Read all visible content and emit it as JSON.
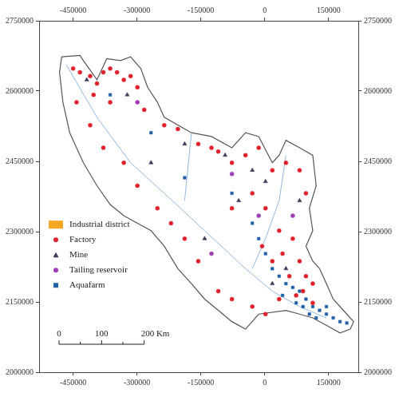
{
  "chart_data": {
    "type": "scatter",
    "xlim": [
      -530000,
      220000
    ],
    "xticks": [
      -450000,
      -300000,
      -150000,
      0,
      150000
    ],
    "ylim": [
      2000000,
      2750000
    ],
    "yticks": [
      2000000,
      2150000,
      2300000,
      2450000,
      2600000,
      2750000
    ],
    "grid": false,
    "legend": "left",
    "boundary": {
      "color": "#555555",
      "x": [
        -477000,
        -434000,
        -426000,
        -394000,
        -371000,
        -339000,
        -315000,
        -291000,
        -275000,
        -252000,
        -236000,
        -172000,
        -125000,
        -77000,
        -45000,
        -14000,
        18000,
        34000,
        50000,
        82000,
        113000,
        121000,
        105000,
        113000,
        97000,
        113000,
        129000,
        145000,
        161000,
        193000,
        209000,
        201000,
        177000,
        145000,
        113000,
        82000,
        50000,
        -14000,
        -45000,
        -77000,
        -109000,
        -141000,
        -172000,
        -204000,
        -236000,
        -267000,
        -299000,
        -331000,
        -363000,
        -394000,
        -426000,
        -458000,
        -474000,
        -482000,
        -477000
      ],
      "y": [
        2673000,
        2676000,
        2665000,
        2624000,
        2669000,
        2665000,
        2673000,
        2648000,
        2608000,
        2576000,
        2544000,
        2511000,
        2503000,
        2479000,
        2511000,
        2503000,
        2447000,
        2463000,
        2495000,
        2479000,
        2463000,
        2398000,
        2350000,
        2302000,
        2269000,
        2237000,
        2221000,
        2189000,
        2156000,
        2124000,
        2108000,
        2092000,
        2084000,
        2100000,
        2116000,
        2124000,
        2132000,
        2124000,
        2092000,
        2108000,
        2132000,
        2156000,
        2189000,
        2221000,
        2269000,
        2302000,
        2318000,
        2334000,
        2358000,
        2398000,
        2447000,
        2511000,
        2576000,
        2640000,
        2673000
      ]
    },
    "rivers": [
      {
        "color": "#8fb8e0",
        "x": [
          -466000,
          -394000,
          -315000,
          -236000,
          -141000,
          -45000,
          18000,
          82000,
          145000
        ],
        "y": [
          2656000,
          2544000,
          2447000,
          2382000,
          2302000,
          2221000,
          2173000,
          2140000,
          2116000
        ]
      },
      {
        "color": "#8fb8e0",
        "x": [
          50000,
          34000,
          2000,
          -29000
        ],
        "y": [
          2463000,
          2366000,
          2285000,
          2221000
        ]
      },
      {
        "color": "#8fb8e0",
        "x": [
          -172000,
          -188000
        ],
        "y": [
          2511000,
          2366000
        ]
      }
    ],
    "series": [
      {
        "name": "Industrial district",
        "color": "#f5a623",
        "marker": "square",
        "x": [],
        "y": []
      },
      {
        "name": "Factory",
        "color": "#e0202a",
        "marker": "circle",
        "x": [
          -450000,
          -434000,
          -410000,
          -394000,
          -379000,
          -363000,
          -347000,
          -331000,
          -315000,
          -299000,
          -402000,
          -363000,
          -283000,
          -236000,
          -204000,
          -156000,
          -125000,
          -109000,
          -77000,
          -45000,
          -14000,
          18000,
          50000,
          82000,
          97000,
          -29000,
          -77000,
          2000,
          34000,
          66000,
          82000,
          97000,
          113000,
          58000,
          34000,
          74000,
          113000,
          2000,
          -29000,
          -77000,
          -109000,
          -156000,
          -188000,
          -220000,
          -252000,
          -299000,
          -331000,
          -379000,
          -410000,
          -442000,
          18000,
          -6000,
          42000,
          90000
        ],
        "y": [
          2648000,
          2640000,
          2632000,
          2616000,
          2640000,
          2648000,
          2640000,
          2624000,
          2632000,
          2608000,
          2592000,
          2576000,
          2560000,
          2527000,
          2519000,
          2487000,
          2479000,
          2471000,
          2447000,
          2463000,
          2479000,
          2431000,
          2447000,
          2431000,
          2382000,
          2382000,
          2350000,
          2350000,
          2302000,
          2285000,
          2237000,
          2205000,
          2189000,
          2205000,
          2156000,
          2164000,
          2148000,
          2124000,
          2140000,
          2156000,
          2173000,
          2237000,
          2285000,
          2318000,
          2350000,
          2398000,
          2447000,
          2479000,
          2527000,
          2576000,
          2237000,
          2269000,
          2253000,
          2173000
        ]
      },
      {
        "name": "Mine",
        "color": "#3a3a5a",
        "marker": "triangle",
        "x": [
          -418000,
          -323000,
          -188000,
          -93000,
          -29000,
          2000,
          -61000,
          82000,
          50000,
          18000,
          -141000,
          -267000
        ],
        "y": [
          2624000,
          2592000,
          2487000,
          2463000,
          2431000,
          2407000,
          2366000,
          2366000,
          2221000,
          2189000,
          2285000,
          2447000
        ]
      },
      {
        "name": "Tailing reservoir",
        "color": "#a03cb4",
        "marker": "circle",
        "x": [
          -299000,
          -77000,
          66000,
          -125000,
          -14000
        ],
        "y": [
          2576000,
          2423000,
          2334000,
          2253000,
          2334000
        ]
      },
      {
        "name": "Aquafarm",
        "color": "#1f5fa8",
        "marker": "square",
        "x": [
          2000,
          18000,
          34000,
          50000,
          66000,
          82000,
          97000,
          113000,
          129000,
          145000,
          161000,
          177000,
          193000,
          105000,
          121000,
          74000,
          90000,
          42000,
          -14000,
          -29000,
          -77000,
          -188000,
          -267000,
          -363000,
          145000
        ],
        "y": [
          2253000,
          2221000,
          2205000,
          2189000,
          2181000,
          2173000,
          2156000,
          2140000,
          2132000,
          2124000,
          2116000,
          2108000,
          2105000,
          2124000,
          2116000,
          2148000,
          2140000,
          2164000,
          2285000,
          2318000,
          2382000,
          2415000,
          2511000,
          2592000,
          2140000
        ]
      }
    ],
    "scale_bar": {
      "values": [
        0,
        100,
        200
      ],
      "labels": [
        "0",
        "100",
        "200 Km"
      ]
    }
  }
}
